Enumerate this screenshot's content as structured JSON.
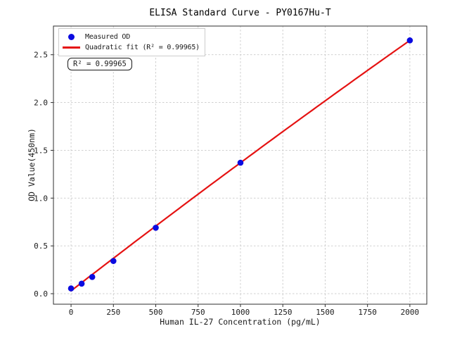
{
  "chart_data": {
    "type": "scatter",
    "title": "ELISA Standard Curve - PY0167Hu-T",
    "xlabel": "Human IL-27 Concentration (pg/mL)",
    "ylabel": "OD Value(450nm)",
    "x": [
      0,
      62.5,
      125,
      250,
      500,
      1000,
      2000
    ],
    "y": [
      0.055,
      0.105,
      0.175,
      0.342,
      0.69,
      1.37,
      2.65
    ],
    "series": [
      {
        "name": "Measured OD",
        "type": "scatter",
        "color": "#0b0be0"
      },
      {
        "name": "Quadratic fit (R² = 0.99965)",
        "type": "line",
        "color": "#e51212",
        "fit": {
          "kind": "quadratic",
          "a": -3e-08,
          "b": 0.00137,
          "c": 0.03,
          "x_start": 0,
          "x_end": 2000,
          "r_squared": 0.99965
        }
      }
    ],
    "x_ticks": [
      "0",
      "250",
      "500",
      "750",
      "1000",
      "1250",
      "1500",
      "1750",
      "2000"
    ],
    "y_ticks": [
      "0.0",
      "0.5",
      "1.0",
      "1.5",
      "2.0",
      "2.5"
    ],
    "xlim": [
      -104,
      2100
    ],
    "ylim": [
      -0.11,
      2.8
    ],
    "grid": true,
    "legend_position": "upper left",
    "annotation": "R² = 0.99965",
    "colors": {
      "grid": "#c9c9c9",
      "spine": "#2e2e2e",
      "background": "#ffffff",
      "text": "#1a1a1a"
    }
  }
}
